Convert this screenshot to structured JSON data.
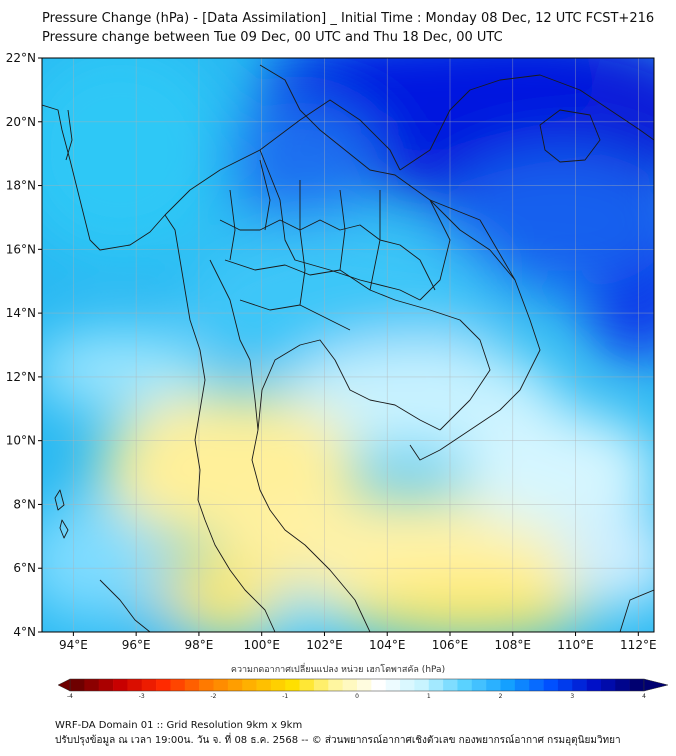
{
  "title": "Pressure Change (hPa) - [Data Assimilation] _ Initial Time : Monday 08 Dec, 12 UTC FCST+216",
  "subtitle": "Pressure change between Tue 09 Dec, 00 UTC and Thu 18 Dec, 00 UTC",
  "map": {
    "lon_range": [
      93,
      112.5
    ],
    "lat_range": [
      4,
      22
    ],
    "lat_ticks": [
      {
        "value": 22,
        "label": "22°N"
      },
      {
        "value": 20,
        "label": "20°N"
      },
      {
        "value": 18,
        "label": "18°N"
      },
      {
        "value": 16,
        "label": "16°N"
      },
      {
        "value": 14,
        "label": "14°N"
      },
      {
        "value": 12,
        "label": "12°N"
      },
      {
        "value": 10,
        "label": "10°N"
      },
      {
        "value": 8,
        "label": "8°N"
      },
      {
        "value": 6,
        "label": "6°N"
      },
      {
        "value": 4,
        "label": "4°N"
      }
    ],
    "lon_ticks": [
      {
        "value": 94,
        "label": "94°E"
      },
      {
        "value": 96,
        "label": "96°E"
      },
      {
        "value": 98,
        "label": "98°E"
      },
      {
        "value": 100,
        "label": "100°E"
      },
      {
        "value": 102,
        "label": "102°E"
      },
      {
        "value": 104,
        "label": "104°E"
      },
      {
        "value": 106,
        "label": "106°E"
      },
      {
        "value": 108,
        "label": "108°E"
      },
      {
        "value": 110,
        "label": "110°E"
      },
      {
        "value": 112,
        "label": "112°E"
      }
    ],
    "field_colors": {
      "deep": "#0010e0",
      "mid": "#22b8f5",
      "light": "#b8f0ff",
      "neutral": "#fff8c8",
      "warm": "#ffe85a"
    }
  },
  "colorbar": {
    "label": "ความกดอากาศเปลี่ยนแปลง หน่วย เฮกโตพาสคัล (hPa)",
    "ticks": [
      "-4",
      "-3",
      "-2",
      "-1",
      "0",
      "1",
      "2",
      "3",
      "4"
    ],
    "colors": [
      "#6e0000",
      "#c80000",
      "#ff2a00",
      "#ff7a00",
      "#ffb000",
      "#ffe000",
      "#fff6a0",
      "#ffffff",
      "#c8f4ff",
      "#5ad2ff",
      "#14a0ff",
      "#0050ff",
      "#0010c8",
      "#000070"
    ]
  },
  "footer": {
    "line1": "WRF-DA Domain 01 :: Grid Resolution 9km x 9km",
    "line2": "ปรับปรุงข้อมูล ณ เวลา 19:00น. วัน จ. ที่ 08 ธ.ค. 2568 -- © ส่วนพยากรณ์อากาศเชิงตัวเลข กองพยากรณ์อากาศ กรมอุตุนิยมวิทยา"
  }
}
